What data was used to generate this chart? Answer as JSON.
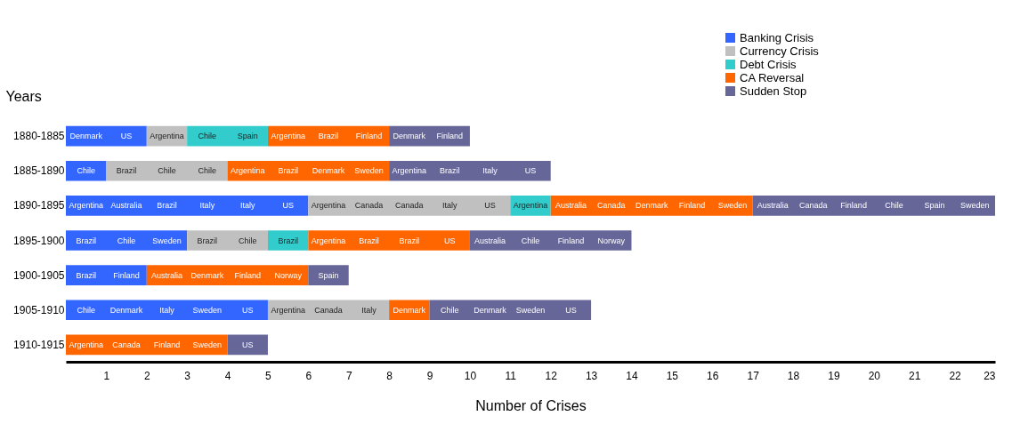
{
  "chart_data": {
    "type": "bar",
    "orientation": "horizontal",
    "stacked": true,
    "xlabel": "Number of Crises",
    "ylabel": "Years",
    "legend": "top right",
    "grid": false,
    "categories": [
      "1880-1885",
      "1885-1890",
      "1890-1895",
      "1895-1900",
      "1900-1905",
      "1905-1910",
      "1910-1915"
    ],
    "xlim": [
      0,
      23
    ],
    "xticks": [
      1,
      2,
      3,
      4,
      5,
      6,
      7,
      8,
      9,
      10,
      11,
      12,
      13,
      14,
      15,
      16,
      17,
      18,
      19,
      20,
      21,
      22,
      23
    ],
    "series": [
      {
        "name": "Banking Crisis",
        "color": "#3366ff",
        "values": [
          2,
          1,
          6,
          3,
          2,
          5,
          0
        ]
      },
      {
        "name": "Currency Crisis",
        "color": "#c0c0c0",
        "values": [
          1,
          3,
          5,
          2,
          0,
          3,
          0
        ]
      },
      {
        "name": "Debt Crisis",
        "color": "#33cccc",
        "values": [
          2,
          0,
          1,
          1,
          0,
          0,
          0
        ]
      },
      {
        "name": "CA Reversal",
        "color": "#ff6600",
        "values": [
          3,
          4,
          5,
          4,
          4,
          1,
          4
        ]
      },
      {
        "name": "Sudden Stop",
        "color": "#666699",
        "values": [
          2,
          4,
          6,
          4,
          1,
          4,
          1
        ]
      }
    ],
    "annotations": [
      "Denmark",
      "US",
      "Argentina",
      "Chile",
      "Spain",
      "Argentina",
      "Brazil",
      "Finland",
      "Denmark",
      "Finland",
      "Chile",
      "Brazil",
      "Chile",
      "Chile",
      "Argentina",
      "Brazil",
      "Denmark",
      "Sweden",
      "Argentina",
      "Brazil",
      "Italy",
      "US",
      "Argentina",
      "Australia",
      "Brazil",
      "Italy",
      "Italy",
      "US",
      "Argentina",
      "Canada",
      "Canada",
      "Italy",
      "US",
      "Argentina",
      "Australia",
      "Canada",
      "Denmark",
      "Finland",
      "Sweden",
      "Australia",
      "Canada",
      "Finland",
      "Chile",
      "Spain",
      "Sweden",
      "Brazil",
      "Chile",
      "Sweden",
      "Brazil",
      "Chile",
      "Brazil",
      "Argentina",
      "Brazil",
      "Brazil",
      "US",
      "Australia",
      "Chile",
      "Finland",
      "Norway",
      "Brazil",
      "Finland",
      "Australia",
      "Denmark",
      "Finland",
      "Norway",
      "Spain",
      "Chile",
      "Denmark",
      "Italy",
      "Sweden",
      "US",
      "Argentina",
      "Canada",
      "Italy",
      "Denmark",
      "Chile",
      "Denmark",
      "Sweden",
      "US",
      "Argentina",
      "Canada",
      "Finland",
      "Sweden",
      "US"
    ]
  }
}
